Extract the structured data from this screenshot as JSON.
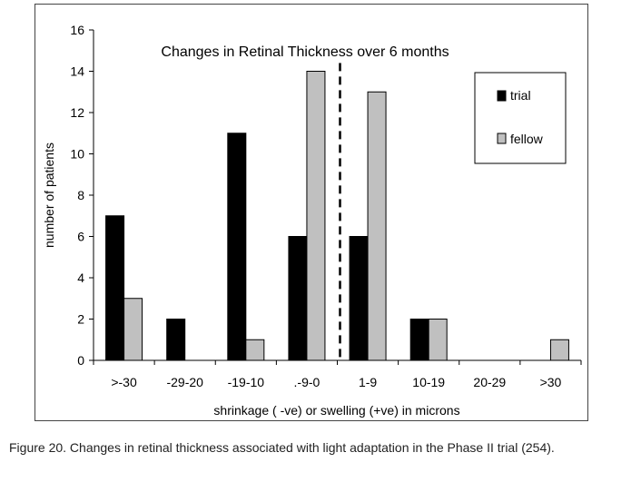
{
  "chart_data": {
    "type": "bar",
    "title": "Changes in Retinal Thickness over 6 months",
    "xlabel": "shrinkage ( -ve) or swelling (+ve) in microns",
    "ylabel": "number of patients",
    "categories": [
      ">-30",
      "-29-20",
      "-19-10",
      ".-9-0",
      "1-9",
      "10-19",
      "20-29",
      ">30"
    ],
    "series": [
      {
        "name": "trial",
        "color": "#000000",
        "values": [
          7,
          2,
          11,
          6,
          6,
          2,
          0,
          0
        ]
      },
      {
        "name": "fellow",
        "color": "#c0c0c0",
        "values": [
          3,
          0,
          1,
          14,
          13,
          2,
          0,
          1
        ]
      }
    ],
    "ylim": [
      0,
      16
    ],
    "yticks": [
      "0",
      "2",
      "4",
      "6",
      "8",
      "10",
      "12",
      "14",
      "16"
    ],
    "grid": false,
    "legend_placement": "top-right",
    "reference_line": {
      "style": "dashed",
      "between_categories": [
        ".-9-0",
        "1-9"
      ]
    }
  },
  "caption": "Figure 20.  Changes in retinal thickness associated with light adaptation in the Phase II trial (254)."
}
